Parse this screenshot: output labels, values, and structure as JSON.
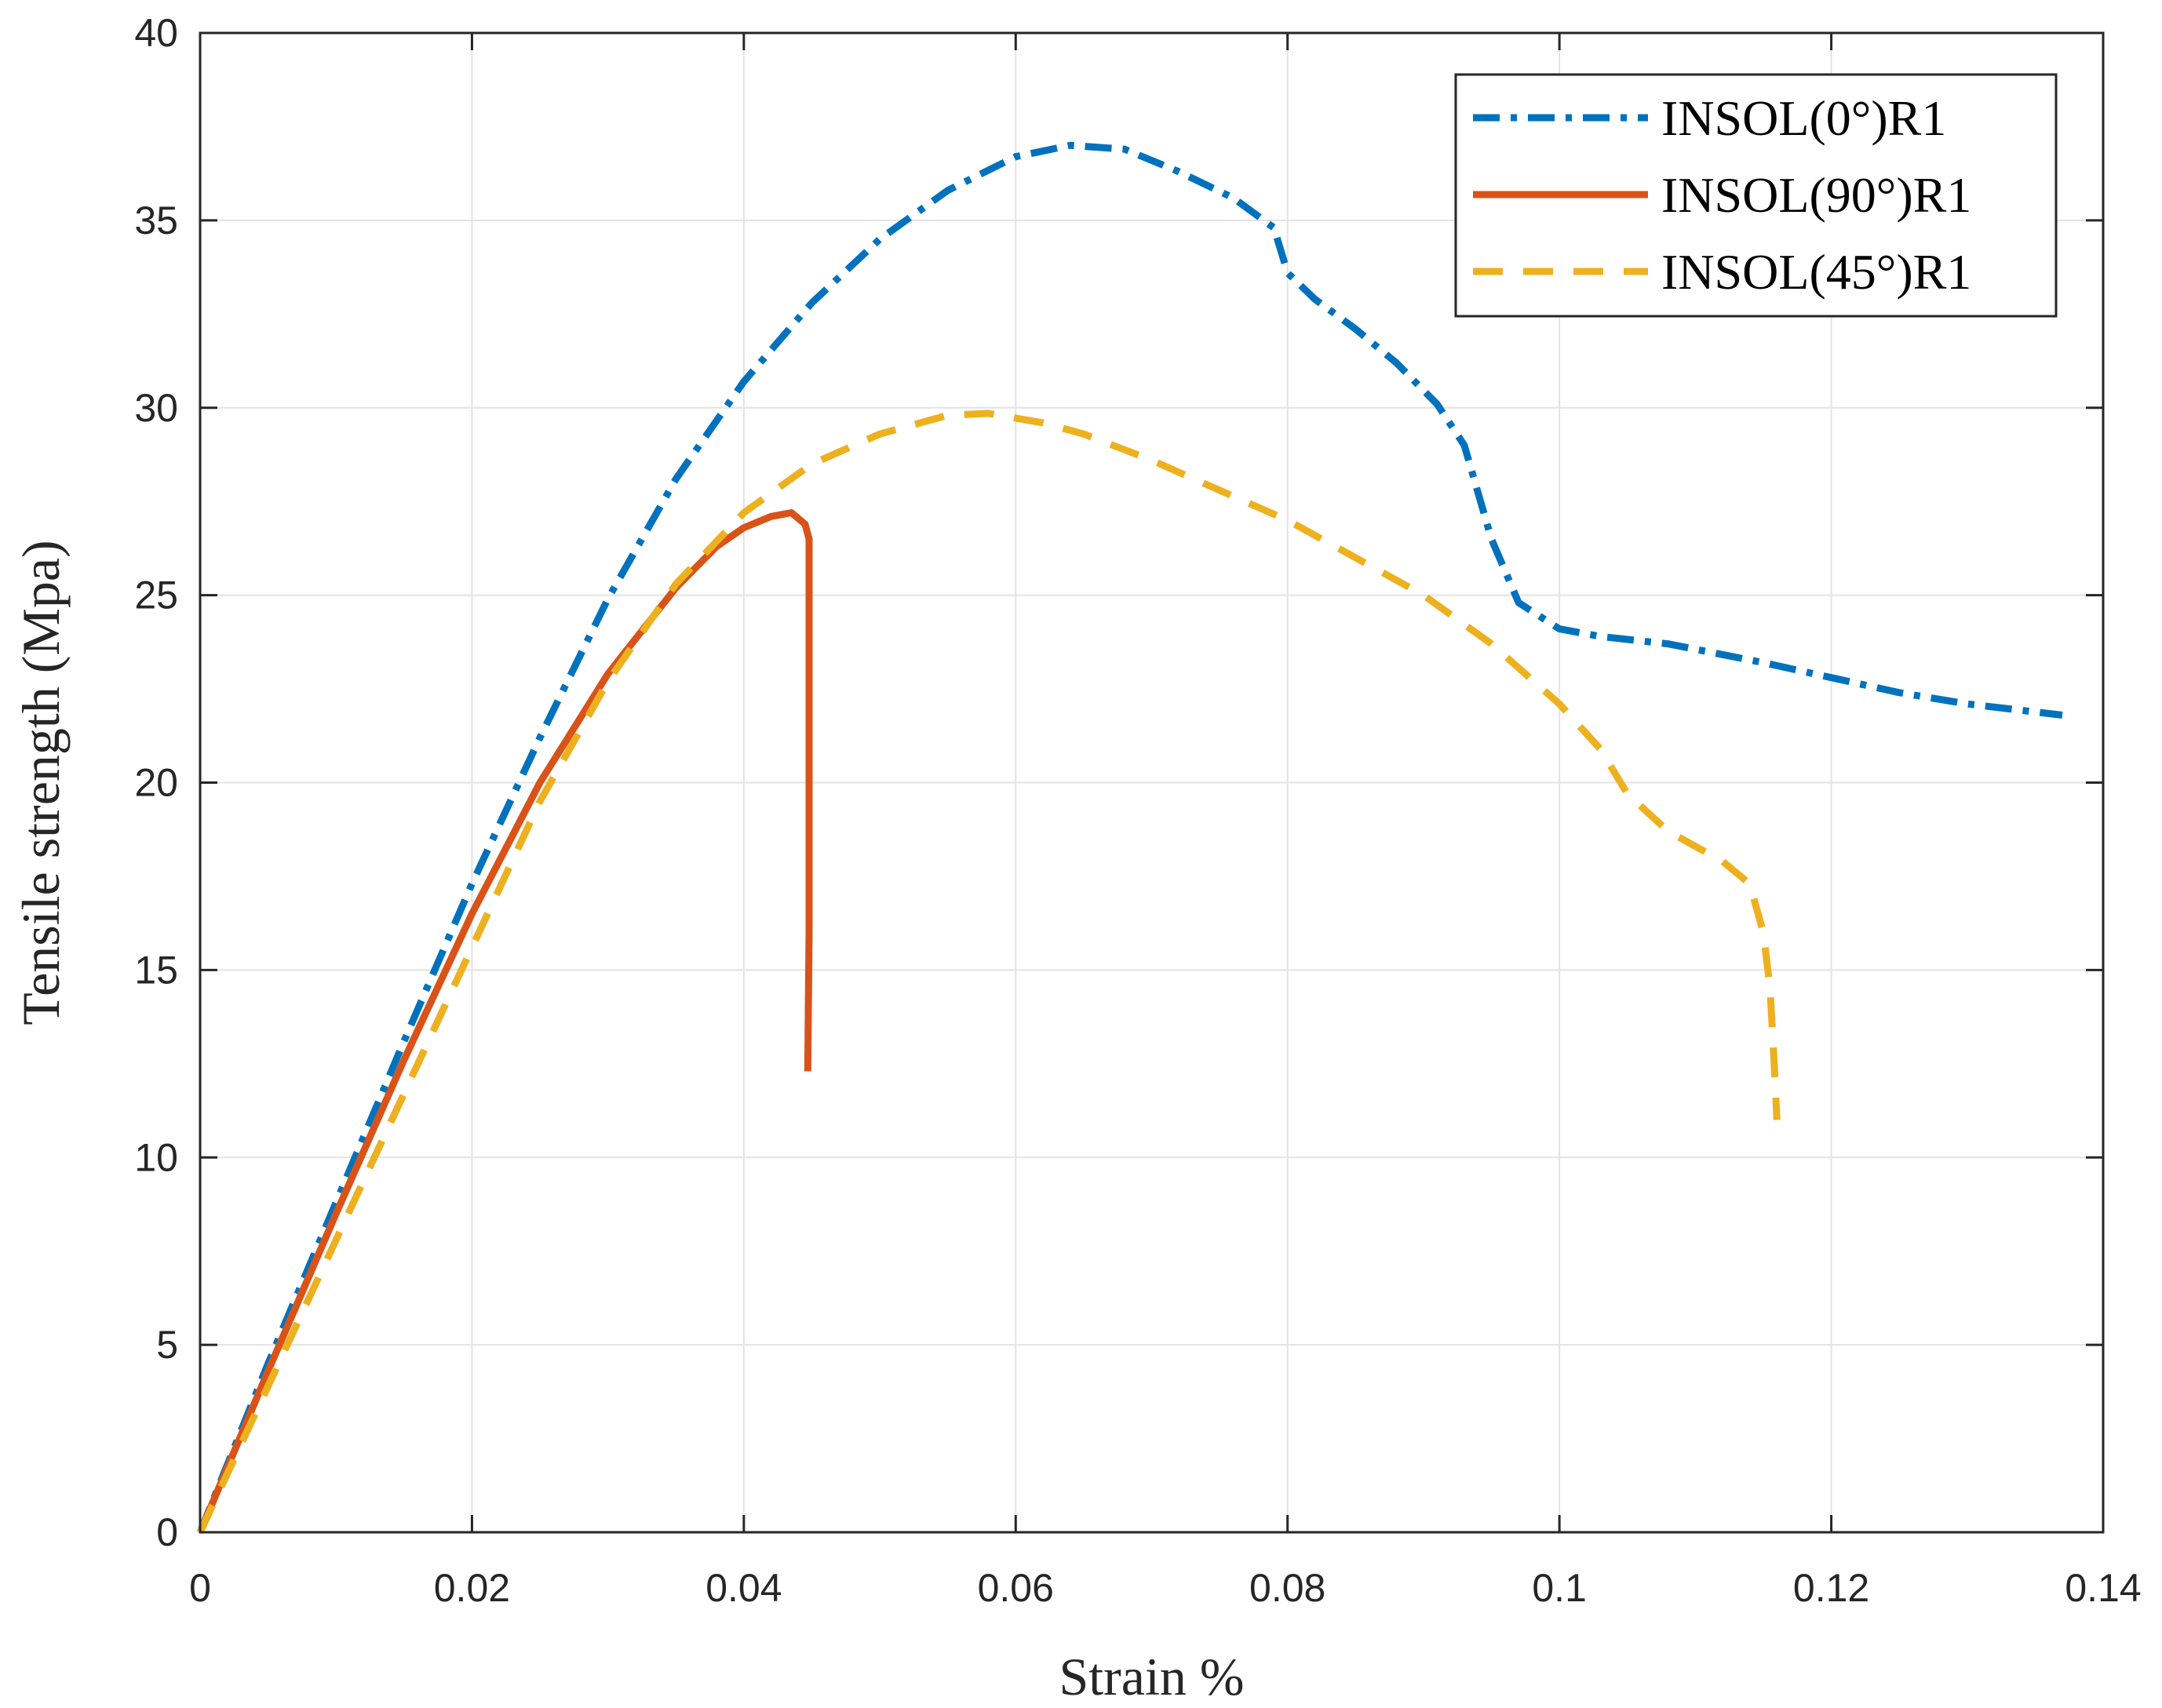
{
  "chart_data": {
    "type": "line",
    "xlabel": "Strain %",
    "ylabel": "Tensile strength (Mpa)",
    "xlim": [
      0,
      0.14
    ],
    "ylim": [
      0,
      40
    ],
    "xticks": [
      0,
      0.02,
      0.04,
      0.06,
      0.08,
      0.1,
      0.12,
      0.14
    ],
    "xtick_labels": [
      "0",
      "0.02",
      "0.04",
      "0.06",
      "0.08",
      "0.1",
      "0.12",
      "0.14"
    ],
    "yticks": [
      0,
      5,
      10,
      15,
      20,
      25,
      30,
      35,
      40
    ],
    "ytick_labels": [
      "0",
      "5",
      "10",
      "15",
      "20",
      "25",
      "30",
      "35",
      "40"
    ],
    "grid": true,
    "legend_position": "top-right",
    "series": [
      {
        "name": "INSOL(0°)R1",
        "color": "#0072BD",
        "style": "dash-dot",
        "points": [
          [
            0,
            0
          ],
          [
            0.005,
            4.5
          ],
          [
            0.01,
            8.8
          ],
          [
            0.015,
            13.1
          ],
          [
            0.02,
            17.3
          ],
          [
            0.025,
            21.2
          ],
          [
            0.03,
            24.9
          ],
          [
            0.035,
            28.1
          ],
          [
            0.04,
            30.7
          ],
          [
            0.045,
            32.8
          ],
          [
            0.05,
            34.5
          ],
          [
            0.055,
            35.8
          ],
          [
            0.06,
            36.7
          ],
          [
            0.064,
            37.0
          ],
          [
            0.068,
            36.9
          ],
          [
            0.072,
            36.3
          ],
          [
            0.076,
            35.6
          ],
          [
            0.079,
            34.8
          ],
          [
            0.08,
            33.6
          ],
          [
            0.082,
            32.9
          ],
          [
            0.085,
            32.1
          ],
          [
            0.088,
            31.2
          ],
          [
            0.091,
            30.1
          ],
          [
            0.093,
            29.0
          ],
          [
            0.095,
            26.5
          ],
          [
            0.097,
            24.8
          ],
          [
            0.1,
            24.1
          ],
          [
            0.103,
            23.9
          ],
          [
            0.108,
            23.7
          ],
          [
            0.115,
            23.2
          ],
          [
            0.12,
            22.8
          ],
          [
            0.125,
            22.4
          ],
          [
            0.13,
            22.1
          ],
          [
            0.137,
            21.8
          ]
        ]
      },
      {
        "name": "INSOL(90°)R1",
        "color": "#D95319",
        "style": "solid",
        "points": [
          [
            0,
            0
          ],
          [
            0.005,
            4.3
          ],
          [
            0.01,
            8.5
          ],
          [
            0.015,
            12.6
          ],
          [
            0.02,
            16.5
          ],
          [
            0.025,
            20.0
          ],
          [
            0.03,
            22.9
          ],
          [
            0.035,
            25.2
          ],
          [
            0.038,
            26.3
          ],
          [
            0.04,
            26.8
          ],
          [
            0.042,
            27.1
          ],
          [
            0.0435,
            27.2
          ],
          [
            0.0445,
            26.9
          ],
          [
            0.0448,
            26.5
          ],
          [
            0.0448,
            16.0
          ],
          [
            0.0447,
            12.3
          ]
        ]
      },
      {
        "name": "INSOL(45°)R1",
        "color": "#EDB120",
        "style": "dashed",
        "points": [
          [
            0,
            0
          ],
          [
            0.005,
            3.9
          ],
          [
            0.01,
            7.8
          ],
          [
            0.015,
            11.7
          ],
          [
            0.02,
            15.6
          ],
          [
            0.025,
            19.5
          ],
          [
            0.03,
            22.7
          ],
          [
            0.035,
            25.3
          ],
          [
            0.04,
            27.2
          ],
          [
            0.045,
            28.5
          ],
          [
            0.05,
            29.3
          ],
          [
            0.055,
            29.8
          ],
          [
            0.058,
            29.85
          ],
          [
            0.062,
            29.6
          ],
          [
            0.065,
            29.3
          ],
          [
            0.07,
            28.6
          ],
          [
            0.075,
            27.8
          ],
          [
            0.08,
            27.0
          ],
          [
            0.085,
            26.0
          ],
          [
            0.09,
            25.0
          ],
          [
            0.095,
            23.7
          ],
          [
            0.1,
            22.1
          ],
          [
            0.103,
            20.9
          ],
          [
            0.105,
            19.7
          ],
          [
            0.108,
            18.7
          ],
          [
            0.112,
            17.9
          ],
          [
            0.114,
            17.3
          ],
          [
            0.115,
            16.0
          ],
          [
            0.1155,
            14.5
          ],
          [
            0.1158,
            12.5
          ],
          [
            0.116,
            11.0
          ]
        ]
      }
    ]
  }
}
